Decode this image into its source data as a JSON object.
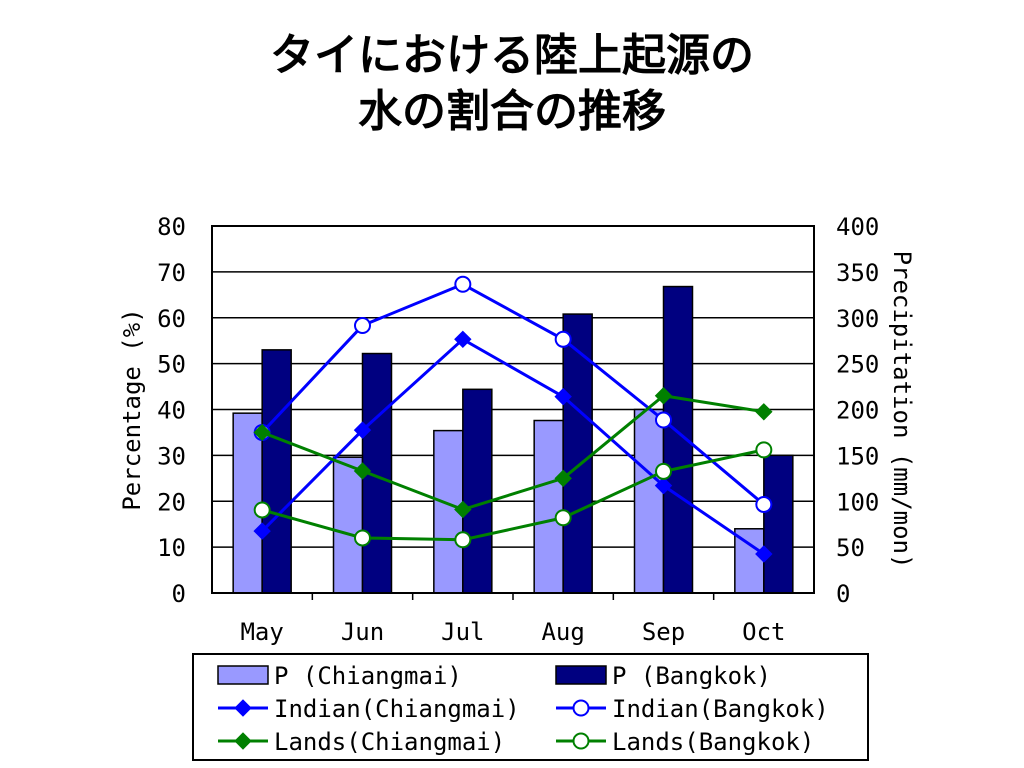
{
  "title_lines": [
    "タイにおける陸上起源の",
    "水の割合の推移"
  ],
  "colors": {
    "bar_chiangmai": "#9999ff",
    "bar_bangkok": "#000080",
    "indian": "#0000ff",
    "lands": "#008000"
  },
  "chart_data": {
    "type": "bar",
    "categories": [
      "May",
      "Jun",
      "Jul",
      "Aug",
      "Sep",
      "Oct"
    ],
    "yleft": {
      "label": "Percentage (%)",
      "range": [
        0,
        80
      ],
      "ticks": [
        0,
        10,
        20,
        30,
        40,
        50,
        60,
        70,
        80
      ]
    },
    "yright": {
      "label": "Precipitation (mm/mon)",
      "range": [
        0,
        400
      ],
      "ticks": [
        0,
        50,
        100,
        150,
        200,
        250,
        300,
        350,
        400
      ]
    },
    "grid": true,
    "legend_position": "bottom",
    "bar_series": [
      {
        "name": "P (Chiangmai)",
        "axis": "right",
        "values": [
          196,
          148,
          177,
          188,
          200,
          70
        ]
      },
      {
        "name": "P (Bangkok)",
        "axis": "right",
        "values": [
          265,
          261,
          222,
          304,
          334,
          150
        ]
      }
    ],
    "line_series": [
      {
        "name": "Indian(Chiangmai)",
        "axis": "left",
        "marker": "diamond",
        "values": [
          13.5,
          35.5,
          55.3,
          42.8,
          23.4,
          8.5
        ]
      },
      {
        "name": "Indian(Bangkok)",
        "axis": "left",
        "marker": "circle-open",
        "values": [
          35,
          58.3,
          67.3,
          55.3,
          37.7,
          19.3
        ]
      },
      {
        "name": "Lands(Chiangmai)",
        "axis": "left",
        "marker": "diamond",
        "values": [
          35,
          26.6,
          18.2,
          25,
          43,
          39.5
        ]
      },
      {
        "name": "Lands(Bangkok)",
        "axis": "left",
        "marker": "circle-open",
        "values": [
          18.1,
          12,
          11.6,
          16.4,
          26.5,
          31.2
        ]
      }
    ]
  },
  "legend": {
    "items": [
      {
        "label": "P (Chiangmai)",
        "kind": "bar",
        "color_key": "bar_chiangmai"
      },
      {
        "label": "P (Bangkok)",
        "kind": "bar",
        "color_key": "bar_bangkok"
      },
      {
        "label": "Indian(Chiangmai)",
        "kind": "line-diamond",
        "color_key": "indian"
      },
      {
        "label": "Indian(Bangkok)",
        "kind": "line-circle",
        "color_key": "indian"
      },
      {
        "label": "Lands(Chiangmai)",
        "kind": "line-diamond",
        "color_key": "lands"
      },
      {
        "label": "Lands(Bangkok)",
        "kind": "line-circle",
        "color_key": "lands"
      }
    ]
  }
}
